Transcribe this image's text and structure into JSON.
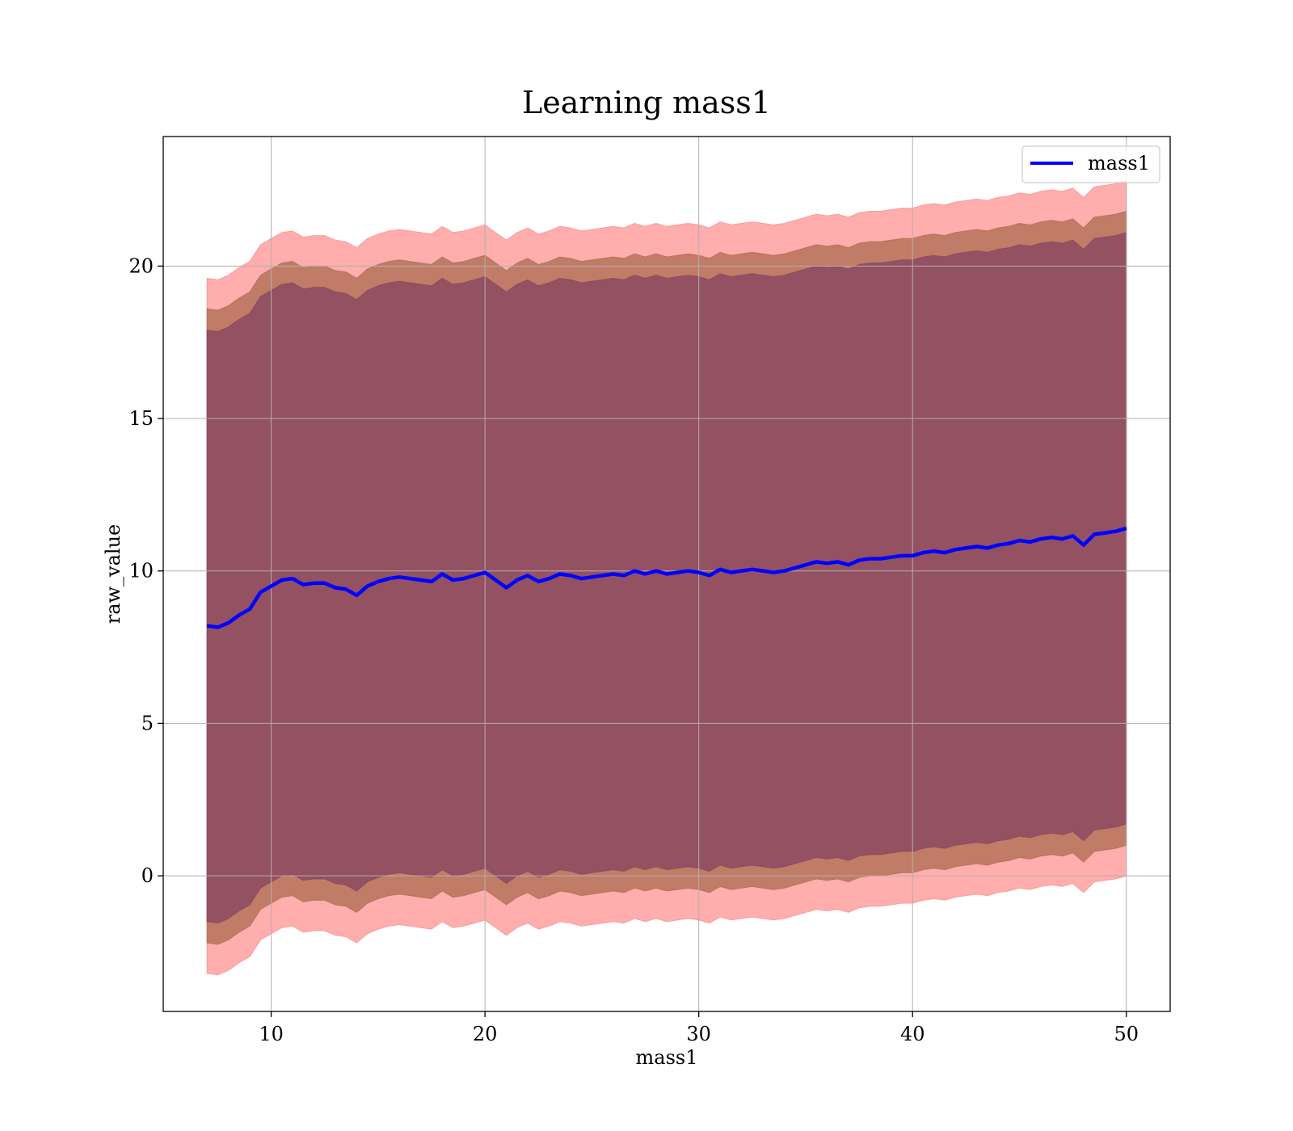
{
  "chart_data": {
    "type": "area",
    "title": "Learning mass1",
    "xlabel": "mass1",
    "ylabel": "raw_value",
    "xlim": [
      4.95,
      52.05
    ],
    "ylim": [
      -4.45,
      24.25
    ],
    "x_ticks": [
      10,
      20,
      30,
      40,
      50
    ],
    "x_tick_labels": [
      "10",
      "20",
      "30",
      "40",
      "50"
    ],
    "y_ticks": [
      0,
      5,
      10,
      15,
      20
    ],
    "y_tick_labels": [
      "0",
      "5",
      "10",
      "15",
      "20"
    ],
    "grid": true,
    "legend": {
      "position": "top-right",
      "entries": [
        "mass1"
      ]
    },
    "colors": {
      "line": "#0000ff",
      "band_outer": "#ff9999",
      "band_middle": "#b5735a",
      "band_inner": "#8c4a60",
      "grid": "#b0b0b0",
      "axes": "#000000"
    },
    "band_half_widths": {
      "outer": 11.4,
      "middle": 10.4,
      "inner": 9.7
    },
    "series": [
      {
        "name": "mass1",
        "x": [
          7.0,
          7.5,
          8.0,
          8.5,
          9.0,
          9.5,
          10.0,
          10.5,
          11.0,
          11.5,
          12.0,
          12.5,
          13.0,
          13.5,
          14.0,
          14.5,
          15.0,
          15.5,
          16.0,
          16.5,
          17.0,
          17.5,
          18.0,
          18.5,
          19.0,
          19.5,
          20.0,
          20.5,
          21.0,
          21.5,
          22.0,
          22.5,
          23.0,
          23.5,
          24.0,
          24.5,
          25.0,
          25.5,
          26.0,
          26.5,
          27.0,
          27.5,
          28.0,
          28.5,
          29.0,
          29.5,
          30.0,
          30.5,
          31.0,
          31.5,
          32.0,
          32.5,
          33.0,
          33.5,
          34.0,
          34.5,
          35.0,
          35.5,
          36.0,
          36.5,
          37.0,
          37.5,
          38.0,
          38.5,
          39.0,
          39.5,
          40.0,
          40.5,
          41.0,
          41.5,
          42.0,
          42.5,
          43.0,
          43.5,
          44.0,
          44.5,
          45.0,
          45.5,
          46.0,
          46.5,
          47.0,
          47.5,
          48.0,
          48.5,
          49.0,
          49.5,
          50.0
        ],
        "y": [
          8.2,
          8.15,
          8.3,
          8.55,
          8.75,
          9.3,
          9.5,
          9.7,
          9.75,
          9.55,
          9.6,
          9.6,
          9.45,
          9.4,
          9.2,
          9.5,
          9.65,
          9.75,
          9.8,
          9.75,
          9.7,
          9.65,
          9.9,
          9.7,
          9.75,
          9.85,
          9.95,
          9.7,
          9.45,
          9.7,
          9.85,
          9.65,
          9.75,
          9.9,
          9.85,
          9.75,
          9.8,
          9.85,
          9.9,
          9.85,
          10.0,
          9.9,
          10.0,
          9.9,
          9.95,
          10.0,
          9.95,
          9.85,
          10.05,
          9.95,
          10.0,
          10.05,
          10.0,
          9.95,
          10.0,
          10.1,
          10.2,
          10.3,
          10.25,
          10.3,
          10.2,
          10.35,
          10.4,
          10.4,
          10.45,
          10.5,
          10.5,
          10.6,
          10.65,
          10.6,
          10.7,
          10.75,
          10.8,
          10.75,
          10.85,
          10.9,
          11.0,
          10.95,
          11.05,
          11.1,
          11.05,
          11.15,
          10.85,
          11.2,
          11.25,
          11.3,
          11.4
        ]
      }
    ]
  }
}
